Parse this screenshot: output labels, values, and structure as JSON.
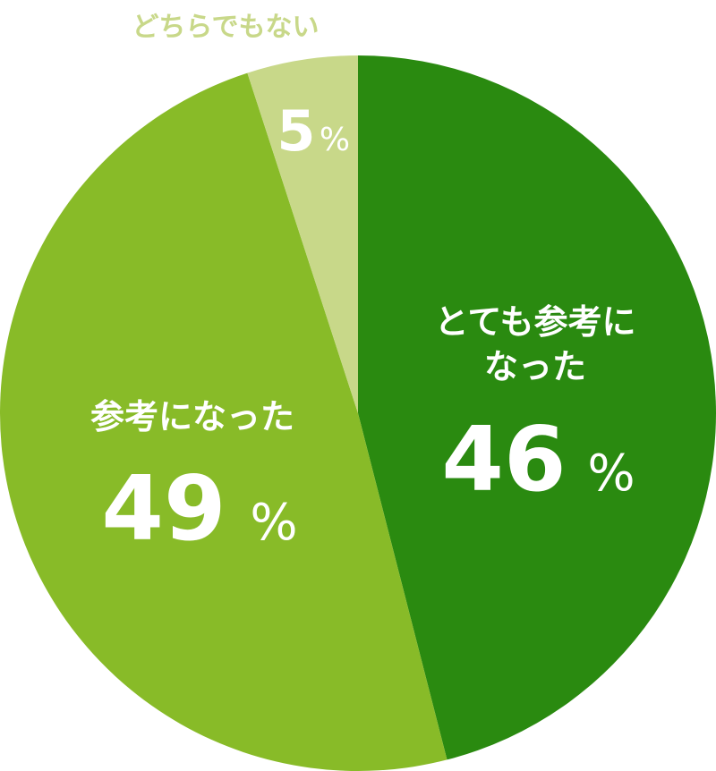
{
  "chart_data": {
    "type": "pie",
    "slices": [
      {
        "label_lines": [
          "とても参考に",
          "なった"
        ],
        "value": 46,
        "unit": "%",
        "color": "#2a8a10",
        "label_color": "#ffffff"
      },
      {
        "label_lines": [
          "参考になった"
        ],
        "value": 49,
        "unit": "%",
        "color": "#88bb28",
        "label_color": "#ffffff"
      },
      {
        "label_lines": [
          "どちらでもない"
        ],
        "value": 5,
        "unit": "%",
        "color": "#c8d889",
        "label_color": "#c8d889"
      }
    ],
    "start_angle": "top",
    "direction": "clockwise"
  }
}
